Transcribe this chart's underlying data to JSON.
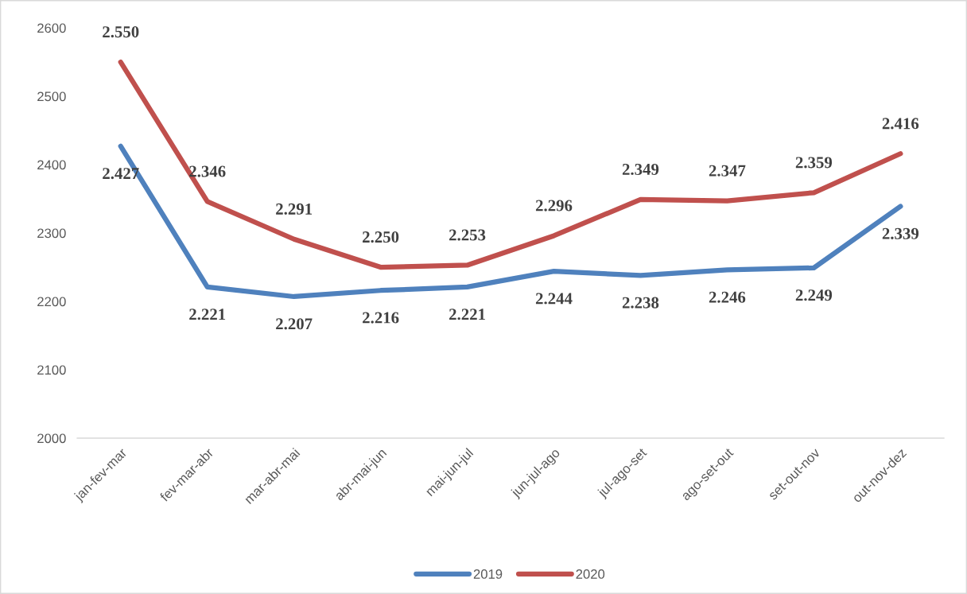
{
  "chart_data": {
    "type": "line",
    "categories": [
      "jan-fev-mar",
      "fev-mar-abr",
      "mar-abr-mai",
      "abr-mai-jun",
      "mai-jun-jul",
      "jun-jul-ago",
      "jul-ago-set",
      "ago-set-out",
      "set-out-nov",
      "out-nov-dez"
    ],
    "series": [
      {
        "name": "2019",
        "color": "#4f81bd",
        "values": [
          2427,
          2221,
          2207,
          2216,
          2221,
          2244,
          2238,
          2246,
          2249,
          2339
        ],
        "value_labels": [
          "2.427",
          "2.221",
          "2.207",
          "2.216",
          "2.221",
          "2.244",
          "2.238",
          "2.246",
          "2.249",
          "2.339"
        ]
      },
      {
        "name": "2020",
        "color": "#c0504d",
        "values": [
          2550,
          2346,
          2291,
          2250,
          2253,
          2296,
          2349,
          2347,
          2359,
          2416
        ],
        "value_labels": [
          "2.550",
          "2.346",
          "2.291",
          "2.250",
          "2.253",
          "2.296",
          "2.349",
          "2.347",
          "2.359",
          "2.416"
        ]
      }
    ],
    "ylim": [
      2000,
      2600
    ],
    "yticks": [
      2000,
      2100,
      2200,
      2300,
      2400,
      2500,
      2600
    ],
    "grid": false,
    "legend": "bottom",
    "line_style": "solid"
  }
}
